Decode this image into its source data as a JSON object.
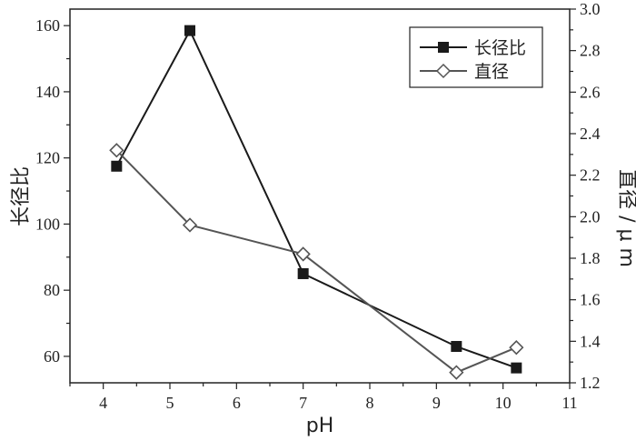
{
  "chart_data": {
    "type": "line",
    "xlabel": "pH",
    "ylabel": "长径比",
    "y2label": "直径 / μ m",
    "xlim": [
      3.5,
      11
    ],
    "ylim": [
      52,
      165
    ],
    "y2lim": [
      1.2,
      3.0
    ],
    "xticks": [
      "4",
      "5",
      "6",
      "7",
      "8",
      "9",
      "10",
      "11"
    ],
    "yticks": [
      "60",
      "80",
      "100",
      "120",
      "140",
      "160"
    ],
    "y2ticks": [
      "1.2",
      "1.4",
      "1.6",
      "1.8",
      "2.0",
      "2.2",
      "2.4",
      "2.6",
      "2.8",
      "3.0"
    ],
    "legend_position": "top-right",
    "series": [
      {
        "name": "长径比",
        "axis": "left",
        "marker": "filled-square",
        "color": "#1a1a1a",
        "x": [
          4.2,
          5.3,
          7.0,
          9.3,
          10.2
        ],
        "values": [
          117.5,
          158.5,
          85,
          63,
          56.5
        ]
      },
      {
        "name": "直径",
        "axis": "right",
        "marker": "open-diamond",
        "color": "#555555",
        "x": [
          4.2,
          5.3,
          7.0,
          9.3,
          10.2
        ],
        "values": [
          2.32,
          1.96,
          1.82,
          1.25,
          1.37
        ]
      }
    ]
  }
}
